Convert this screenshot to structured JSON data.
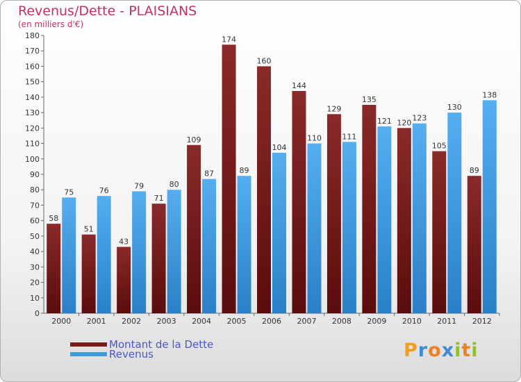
{
  "title": "Revenus/Dette - PLAISIANS",
  "subtitle": "(en milliers d'€)",
  "colors": {
    "debt": "#7a1c1c",
    "revenue": "#3d9be0",
    "text": "#c0306a",
    "legend_text": "#4a55c8"
  },
  "chart_data": {
    "type": "bar",
    "categories": [
      "2000",
      "2001",
      "2002",
      "2003",
      "2004",
      "2005",
      "2006",
      "2007",
      "2008",
      "2009",
      "2010",
      "2011",
      "2012"
    ],
    "series": [
      {
        "name": "Montant de la Dette",
        "values": [
          58,
          51,
          43,
          71,
          109,
          174,
          160,
          144,
          129,
          135,
          120,
          105,
          89
        ]
      },
      {
        "name": "Revenus",
        "values": [
          75,
          76,
          79,
          80,
          87,
          89,
          104,
          110,
          111,
          121,
          123,
          130,
          138
        ]
      }
    ],
    "ylim": [
      0,
      180
    ],
    "yticks": [
      0,
      10,
      20,
      30,
      40,
      50,
      60,
      70,
      80,
      90,
      100,
      110,
      120,
      130,
      140,
      150,
      160,
      170,
      180
    ],
    "grid": false,
    "legend": "bottom-left"
  },
  "legend": {
    "items": [
      "Montant de la Dette",
      "Revenus"
    ]
  },
  "logo": {
    "letters": [
      "P",
      "r",
      "o",
      "x",
      "i",
      "t",
      "i"
    ],
    "colors": [
      "#f0a020",
      "#3c8ad8",
      "#f08020",
      "#3c8ad8",
      "#90c030",
      "#f08020",
      "#90c030"
    ]
  }
}
